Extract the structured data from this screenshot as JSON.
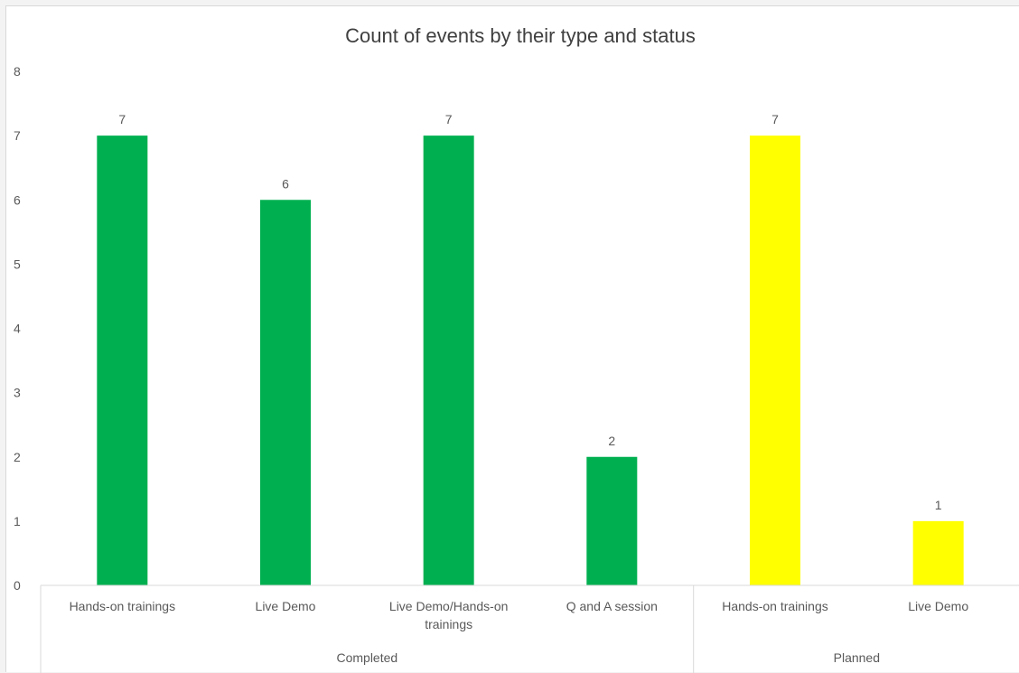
{
  "chart_data": {
    "type": "bar",
    "title": "Count of events by their type and status",
    "xlabel": "",
    "ylabel": "",
    "ylim": [
      0,
      8
    ],
    "yticks": [
      0,
      1,
      2,
      3,
      4,
      5,
      6,
      7,
      8
    ],
    "grid": false,
    "legend": "none",
    "groups": [
      {
        "name": "Completed",
        "color": "#00b050",
        "categories": [
          {
            "label": "Hands-on trainings",
            "lines": [
              "Hands-on trainings"
            ],
            "value": 7
          },
          {
            "label": "Live Demo",
            "lines": [
              "Live Demo"
            ],
            "value": 6
          },
          {
            "label": "Live Demo/Hands-on trainings",
            "lines": [
              "Live Demo/Hands-on",
              "trainings"
            ],
            "value": 7
          },
          {
            "label": "Q and A session",
            "lines": [
              "Q and A session"
            ],
            "value": 2
          }
        ]
      },
      {
        "name": "Planned",
        "color": "#ffff00",
        "categories": [
          {
            "label": "Hands-on trainings",
            "lines": [
              "Hands-on trainings"
            ],
            "value": 7
          },
          {
            "label": "Live Demo",
            "lines": [
              "Live Demo"
            ],
            "value": 1
          }
        ]
      }
    ]
  }
}
